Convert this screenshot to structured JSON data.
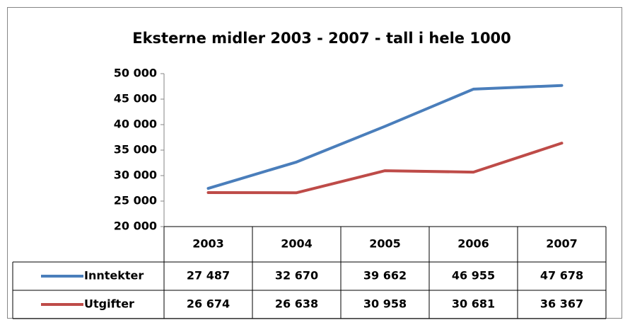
{
  "chart_data": {
    "type": "line",
    "title": "Eksterne midler 2003 - 2007 - tall i hele 1000",
    "categories": [
      "2003",
      "2004",
      "2005",
      "2006",
      "2007"
    ],
    "series": [
      {
        "name": "Inntekter",
        "color": "#4a7ebb",
        "values": [
          27487,
          32670,
          39662,
          46955,
          47678
        ],
        "value_labels": [
          "27 487",
          "32 670",
          "39 662",
          "46 955",
          "47 678"
        ]
      },
      {
        "name": "Utgifter",
        "color": "#be4b48",
        "values": [
          26674,
          26638,
          30958,
          30681,
          36367
        ],
        "value_labels": [
          "26 674",
          "26 638",
          "30 958",
          "30 681",
          "36 367"
        ]
      }
    ],
    "ylim": [
      20000,
      50000
    ],
    "yticks": [
      {
        "value": 20000,
        "label": "20 000"
      },
      {
        "value": 25000,
        "label": "25 000"
      },
      {
        "value": 30000,
        "label": "30 000"
      },
      {
        "value": 35000,
        "label": "35 000"
      },
      {
        "value": 40000,
        "label": "40 000"
      },
      {
        "value": 45000,
        "label": "45 000"
      },
      {
        "value": 50000,
        "label": "50 000"
      }
    ],
    "grid": false,
    "data_table": true
  }
}
